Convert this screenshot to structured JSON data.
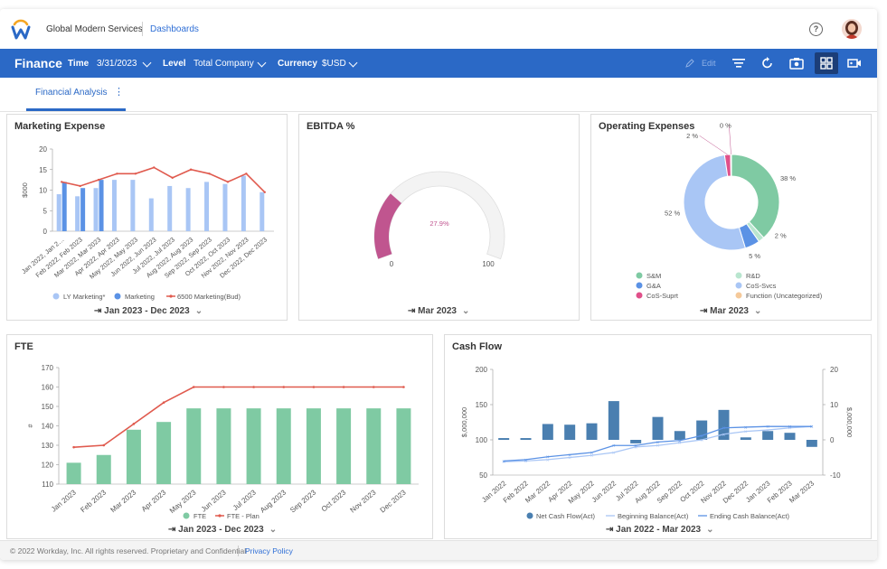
{
  "app": {
    "org_name": "Global Modern Services",
    "breadcrumb": "Dashboards",
    "help_icon": "question-circle-icon",
    "avatar": "user-avatar"
  },
  "toolbar": {
    "title": "Finance",
    "time_label": "Time",
    "time_value": "3/31/2023",
    "level_label": "Level",
    "level_value": "Total Company",
    "currency_label": "Currency",
    "currency_value": "$USD",
    "edit_label": "Edit",
    "icons": [
      "filter-icon",
      "refresh-icon",
      "camera-icon",
      "grid-view-icon",
      "video-icon"
    ],
    "bar_color": "#2b69c6"
  },
  "tabs": [
    {
      "label": "Financial Analysis",
      "active": true
    }
  ],
  "cards": {
    "marketing": {
      "title": "Marketing Expense",
      "footer": "Jan 2023 - Dec 2023"
    },
    "ebitda": {
      "title": "EBITDA %",
      "footer": "Mar 2023"
    },
    "opex": {
      "title": "Operating Expenses",
      "footer": "Mar 2023"
    },
    "fte": {
      "title": "FTE",
      "footer": "Jan 2023 - Dec 2023"
    },
    "cashflow": {
      "title": "Cash Flow",
      "footer": "Jan 2022 - Mar 2023"
    }
  },
  "footer": {
    "copyright": "© 2022 Workday, Inc. All rights reserved. Proprietary and Confidential",
    "link": "Privacy Policy"
  },
  "chart_data": [
    {
      "id": "marketing",
      "type": "bar",
      "title": "Marketing Expense",
      "ylabel": "$000",
      "ylim": [
        0,
        20
      ],
      "yticks": [
        0,
        5,
        10,
        15,
        20
      ],
      "categories": [
        "Jan 2022, Jan 2…",
        "Feb 2022, Feb 2023",
        "Mar 2022, Mar 2023",
        "Apr 2022, Apr 2023",
        "May 2022, May 2023",
        "Jun 2022, Jun 2023",
        "Jul 2022, Jul 2023",
        "Aug 2022, Aug 2023",
        "Sep 2022, Sep 2023",
        "Oct 2022, Oct 2023",
        "Nov 2022, Nov 2023",
        "Dec 2022, Dec 2023"
      ],
      "series": [
        {
          "name": "LY Marketing*",
          "kind": "bar",
          "color": "#a9c6f5",
          "values": [
            9,
            8.5,
            10.5,
            12.5,
            12.5,
            8,
            11,
            10.5,
            12,
            11.5,
            13.5,
            9.5
          ]
        },
        {
          "name": "Marketing",
          "kind": "bar",
          "color": "#5b92e5",
          "values": [
            12,
            10.5,
            12.5,
            null,
            null,
            null,
            null,
            null,
            null,
            null,
            null,
            null
          ]
        },
        {
          "name": "6500 Marketing(Bud)",
          "kind": "line",
          "color": "#e05a4e",
          "values": [
            12,
            11,
            12.5,
            14,
            14,
            15.5,
            13,
            15,
            14,
            12,
            14,
            9.5
          ]
        }
      ],
      "legend": "bottom"
    },
    {
      "id": "ebitda",
      "type": "gauge",
      "title": "EBITDA %",
      "value": 27.9,
      "value_label": "27.9%",
      "min": 0,
      "max": 100,
      "min_label": "0",
      "max_label": "100",
      "color": "#c0558f"
    },
    {
      "id": "opex",
      "type": "pie",
      "title": "Operating Expenses",
      "slices": [
        {
          "name": "S&M",
          "value": 38,
          "label": "38 %",
          "color": "#7fcaa3"
        },
        {
          "name": "R&D",
          "value": 2,
          "label": "2 %",
          "color": "#b9e6cf"
        },
        {
          "name": "G&A",
          "value": 5,
          "label": "5 %",
          "color": "#5b92e5"
        },
        {
          "name": "CoS-Svcs",
          "value": 52,
          "label": "52 %",
          "color": "#a9c6f5"
        },
        {
          "name": "CoS-Suprt",
          "value": 2,
          "label": "2 %",
          "color": "#e0508a"
        },
        {
          "name": "Function (Uncategorized)",
          "value": 0.3,
          "label": "0 %",
          "color": "#f5c99a"
        }
      ],
      "legend": "bottom"
    },
    {
      "id": "fte",
      "type": "bar",
      "title": "FTE",
      "ylabel": "#",
      "ylim": [
        110,
        170
      ],
      "yticks": [
        110,
        120,
        130,
        140,
        150,
        160,
        170
      ],
      "categories": [
        "Jan 2023",
        "Feb 2023",
        "Mar 2023",
        "Apr 2023",
        "May 2023",
        "Jun 2023",
        "Jul 2023",
        "Aug 2023",
        "Sep 2023",
        "Oct 2023",
        "Nov 2023",
        "Dec 2023"
      ],
      "series": [
        {
          "name": "FTE",
          "kind": "bar",
          "color": "#7fcaa3",
          "values": [
            121,
            125,
            138,
            142,
            149,
            149,
            149,
            149,
            149,
            149,
            149,
            149
          ]
        },
        {
          "name": "FTE - Plan",
          "kind": "line",
          "color": "#e05a4e",
          "values": [
            129,
            130,
            141,
            152,
            160,
            160,
            160,
            160,
            160,
            160,
            160,
            160
          ]
        }
      ],
      "legend": "bottom"
    },
    {
      "id": "cashflow",
      "type": "bar",
      "title": "Cash Flow",
      "ylabel": "$,000,000",
      "y2label": "$,000,000",
      "ylim": [
        50,
        200
      ],
      "yticks": [
        50,
        100,
        150,
        200
      ],
      "y2lim": [
        -10,
        20
      ],
      "y2ticks": [
        -10,
        0,
        10,
        20
      ],
      "categories": [
        "Jan 2022",
        "Feb 2022",
        "Mar 2022",
        "Apr 2022",
        "May 2022",
        "Jun 2022",
        "Jul 2022",
        "Aug 2022",
        "Sep 2022",
        "Oct 2022",
        "Nov 2022",
        "Dec 2022",
        "Jan 2023",
        "Feb 2023",
        "Mar 2023"
      ],
      "series": [
        {
          "name": "Net Cash Flow(Act)",
          "kind": "bar",
          "axis": "right",
          "color": "#4a7fb0",
          "values": [
            0.5,
            0.5,
            4.5,
            4.3,
            4.7,
            11,
            -1,
            6.5,
            2.5,
            5.5,
            8.5,
            0.7,
            2.5,
            2,
            -2
          ]
        },
        {
          "name": "Beginning Balance(Act)",
          "kind": "line",
          "axis": "left",
          "color": "#a9c6f5",
          "values": [
            69,
            70,
            72,
            75,
            78,
            82,
            90,
            92,
            96,
            100,
            108,
            112,
            114,
            117,
            119
          ]
        },
        {
          "name": "Ending Cash Balance(Act)",
          "kind": "line",
          "axis": "left",
          "color": "#5b92e5",
          "values": [
            70,
            72,
            76,
            79,
            82,
            92,
            92,
            97,
            99,
            106,
            117,
            118,
            119,
            119,
            119
          ]
        }
      ],
      "legend": "bottom"
    }
  ]
}
